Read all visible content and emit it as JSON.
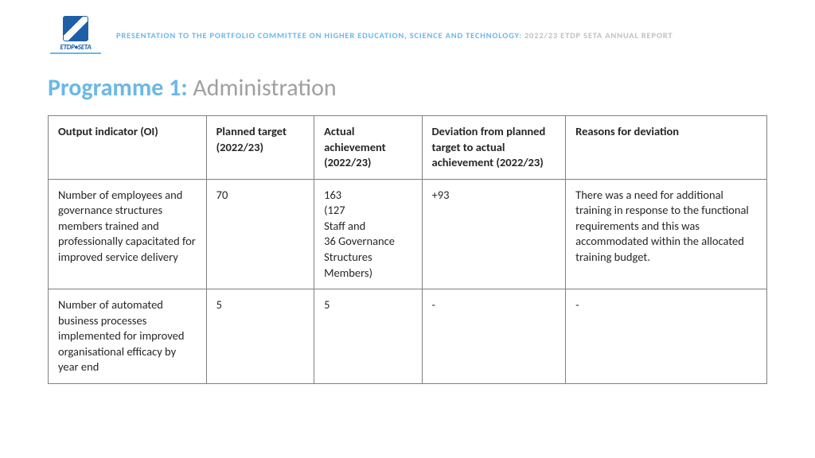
{
  "header": {
    "logo_text": "ETDP•SETA",
    "line1_prefix": "PRESENTATION TO THE PORTFOLIO COMMITTEE ON HIGHER EDUCATION, SCIENCE AND TECHNOLOGY: ",
    "line1_suffix": "2022/23 ETDP SETA ANNUAL REPORT"
  },
  "title": {
    "prog": "Programme 1: ",
    "rest": "Administration"
  },
  "table": {
    "columns": [
      "Output indicator (OI)",
      "Planned target (2022/23)",
      "Actual achievement (2022/23)",
      "Deviation from planned target to actual achievement (2022/23)",
      "Reasons for deviation"
    ],
    "rows": [
      {
        "oi": "Number of employees and governance structures members trained and professionally capacitated for improved service delivery",
        "planned": "70",
        "actual": "163\n(127\nStaff and\n36 Governance Structures Members)",
        "deviation": "+93",
        "reasons": "There was a need for additional training in response to the functional requirements and this was accommodated within the allocated training budget."
      },
      {
        "oi": "Number of automated business processes implemented for improved organisational efficacy by year end",
        "planned": "5",
        "actual": "5",
        "deviation": "-",
        "reasons": "-"
      }
    ]
  },
  "colors": {
    "accent": "#6bb8e8",
    "text": "#262626",
    "muted": "#a0a0a0",
    "border": "#808080"
  }
}
